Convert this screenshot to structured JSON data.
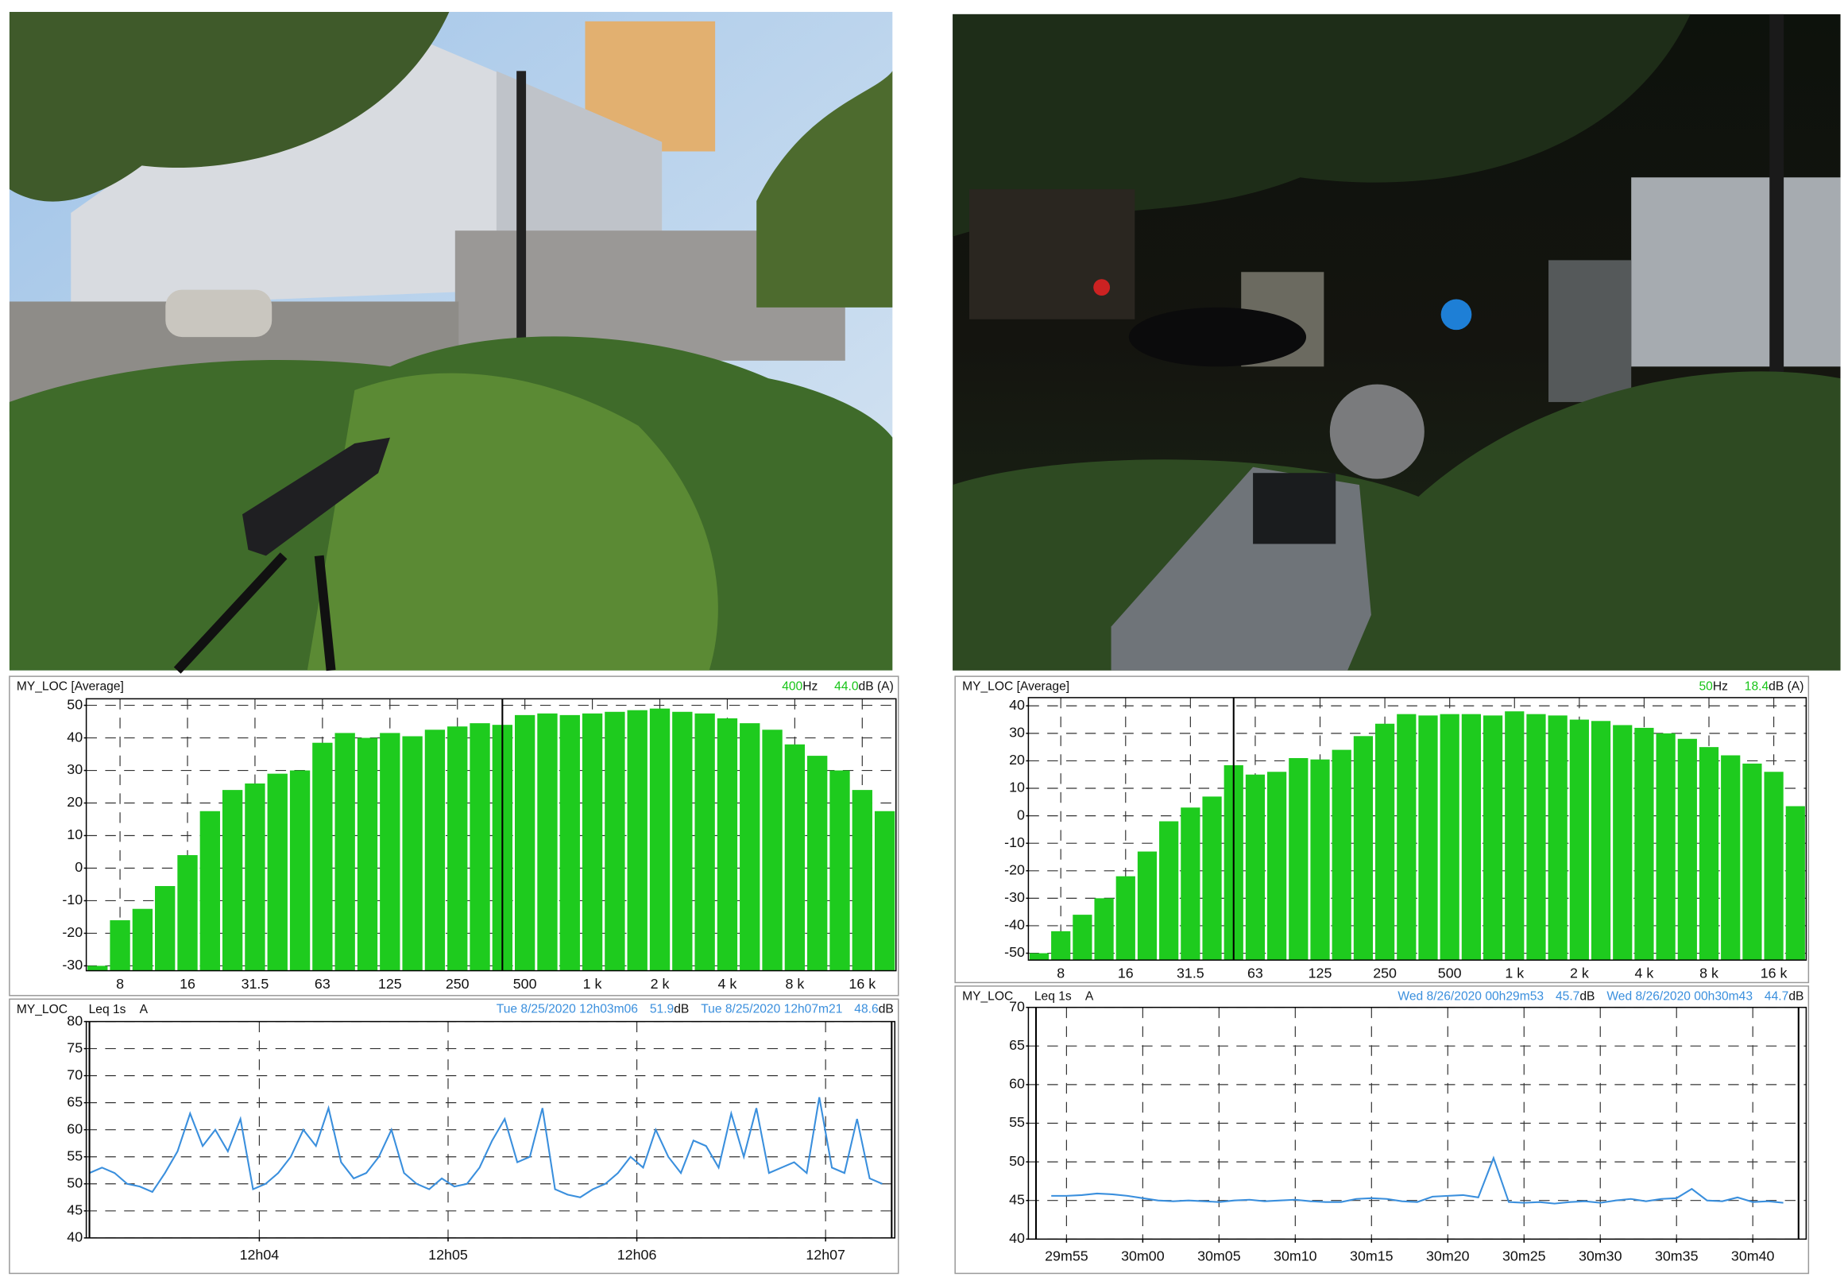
{
  "chart_data": [
    {
      "type": "bar",
      "title": "MY_LOC [Average]",
      "cursor_frequency": 400,
      "frequency_unit": "Hz",
      "cursor_level": {
        "value": 44,
        "label": "44.0"
      },
      "level_unit": "dB (A)",
      "categories": [
        null,
        "8",
        null,
        null,
        "16",
        null,
        null,
        "31.5",
        null,
        null,
        "63",
        null,
        null,
        "125",
        null,
        null,
        "250",
        null,
        null,
        "500",
        null,
        null,
        "1 k",
        null,
        null,
        "2 k",
        null,
        null,
        "4 k",
        null,
        null,
        "8 k",
        null,
        null,
        "16 k",
        null
      ],
      "values": [
        -30,
        -16,
        -12.5,
        -5.5,
        4,
        17.5,
        24,
        26,
        29,
        30,
        38.5,
        41.5,
        40,
        41.5,
        40.5,
        42.5,
        43.5,
        44.5,
        44,
        47,
        47.5,
        47,
        47.5,
        48,
        48.5,
        49,
        48,
        47.5,
        46,
        44.5,
        42.5,
        38,
        34.5,
        30,
        24,
        17.5
      ],
      "color": "#1ecb1e",
      "ylim": [
        -31.5,
        52
      ],
      "yticks": [
        -30,
        -20,
        -10,
        0,
        10,
        20,
        30,
        40,
        50
      ],
      "grid": true
    },
    {
      "type": "line",
      "title": "MY_LOC",
      "measure": "Leq 1s",
      "weighting": "A",
      "cursors": [
        {
          "time": "Tue 8/25/2020 12h03m06",
          "x": 186,
          "level": 51.9,
          "unit": "dB"
        },
        {
          "time": "Tue 8/25/2020 12h07m21",
          "x": 441,
          "level": 48.6,
          "unit": "dB"
        }
      ],
      "x": [
        186,
        190,
        194,
        198,
        202,
        206,
        210,
        214,
        218,
        222,
        226,
        230,
        234,
        238,
        242,
        246,
        250,
        254,
        258,
        262,
        266,
        270,
        274,
        278,
        282,
        286,
        290,
        294,
        298,
        302,
        306,
        310,
        314,
        318,
        322,
        326,
        330,
        334,
        338,
        342,
        346,
        350,
        354,
        358,
        362,
        366,
        370,
        374,
        378,
        382,
        386,
        390,
        394,
        398,
        402,
        406,
        410,
        414,
        418,
        422,
        426,
        430,
        434,
        438
      ],
      "values": [
        52,
        53,
        52,
        50,
        49.5,
        48.5,
        52,
        56,
        63,
        57,
        60,
        56,
        62,
        49,
        50,
        52,
        55,
        60,
        57,
        64,
        54,
        51,
        52,
        55,
        60,
        52,
        50,
        49,
        51,
        49.5,
        50,
        53,
        58,
        62,
        54,
        55,
        64,
        49,
        48,
        47.5,
        49,
        50,
        52,
        55,
        53,
        60,
        55,
        52,
        58,
        57,
        53,
        63,
        55,
        64,
        52,
        53,
        54,
        52,
        66,
        53,
        52,
        62,
        51,
        50
      ],
      "color": "#3a8fdd",
      "xlim": [
        185,
        442
      ],
      "xticks": [
        {
          "value": 240,
          "label": "12h04"
        },
        {
          "value": 300,
          "label": "12h05"
        },
        {
          "value": 360,
          "label": "12h06"
        },
        {
          "value": 420,
          "label": "12h07"
        }
      ],
      "ylim": [
        40,
        80
      ],
      "yticks": [
        40,
        45,
        50,
        55,
        60,
        65,
        70,
        75,
        80
      ],
      "grid": true
    },
    {
      "type": "bar",
      "title": "MY_LOC [Average]",
      "cursor_frequency": 50,
      "frequency_unit": "Hz",
      "cursor_level": 18.4,
      "level_unit": "dB (A)",
      "categories": [
        null,
        "8",
        null,
        null,
        "16",
        null,
        null,
        "31.5",
        null,
        null,
        "63",
        null,
        null,
        "125",
        null,
        null,
        "250",
        null,
        null,
        "500",
        null,
        null,
        "1 k",
        null,
        null,
        "2 k",
        null,
        null,
        "4 k",
        null,
        null,
        "8 k",
        null,
        null,
        "16 k",
        null
      ],
      "values": [
        -50,
        -42,
        -36,
        -30,
        -22,
        -13,
        -2,
        3,
        7,
        18.4,
        15,
        16,
        21,
        20.5,
        24,
        29,
        33.5,
        37,
        36.5,
        37,
        37,
        36.5,
        38,
        37,
        36.5,
        35,
        34.5,
        33,
        32,
        30,
        28,
        25,
        22,
        19,
        16,
        3.5
      ],
      "color": "#1ecb1e",
      "ylim": [
        -52.5,
        43
      ],
      "yticks": [
        -50,
        -40,
        -30,
        -20,
        -10,
        0,
        10,
        20,
        30,
        40
      ],
      "grid": true
    },
    {
      "type": "line",
      "title": "MY_LOC",
      "measure": "Leq 1s",
      "weighting": "A",
      "cursors": [
        {
          "time": "Wed 8/26/2020 00h29m53",
          "x": 53,
          "level": 45.7,
          "unit": "dB"
        },
        {
          "time": "Wed 8/26/2020 00h30m43",
          "x": 103,
          "level": 44.7,
          "unit": "dB"
        }
      ],
      "x": [
        54,
        55,
        56,
        57,
        58,
        59,
        60,
        61,
        62,
        63,
        64,
        65,
        66,
        67,
        68,
        69,
        70,
        71,
        72,
        73,
        74,
        75,
        76,
        77,
        78,
        79,
        80,
        81,
        82,
        83,
        84,
        85,
        86,
        87,
        88,
        89,
        90,
        91,
        92,
        93,
        94,
        95,
        96,
        97,
        98,
        99,
        100,
        101,
        102
      ],
      "values": [
        45.6,
        45.6,
        45.7,
        45.9,
        45.8,
        45.6,
        45.3,
        45,
        44.9,
        45,
        44.9,
        44.8,
        45,
        45.1,
        44.9,
        45,
        45.1,
        44.9,
        44.8,
        44.8,
        45.2,
        45.3,
        45.2,
        44.9,
        44.8,
        45.5,
        45.6,
        45.7,
        45.4,
        50.5,
        44.8,
        44.7,
        44.8,
        44.6,
        44.8,
        44.9,
        44.7,
        45,
        45.2,
        44.9,
        45.2,
        45.3,
        46.5,
        45,
        44.9,
        45.4,
        44.8,
        44.9,
        44.7
      ],
      "color": "#3a8fdd",
      "xlim": [
        52.5,
        103.5
      ],
      "xticks": [
        {
          "value": 55,
          "label": "29m55"
        },
        {
          "value": 60,
          "label": "30m00"
        },
        {
          "value": 65,
          "label": "30m05"
        },
        {
          "value": 70,
          "label": "30m10"
        },
        {
          "value": 75,
          "label": "30m15"
        },
        {
          "value": 80,
          "label": "30m20"
        },
        {
          "value": 85,
          "label": "30m25"
        },
        {
          "value": 90,
          "label": "30m30"
        },
        {
          "value": 95,
          "label": "30m35"
        },
        {
          "value": 100,
          "label": "30m40"
        }
      ],
      "ylim": [
        40,
        70
      ],
      "yticks": [
        40,
        45,
        50,
        55,
        60,
        65,
        70
      ],
      "grid": true
    }
  ]
}
